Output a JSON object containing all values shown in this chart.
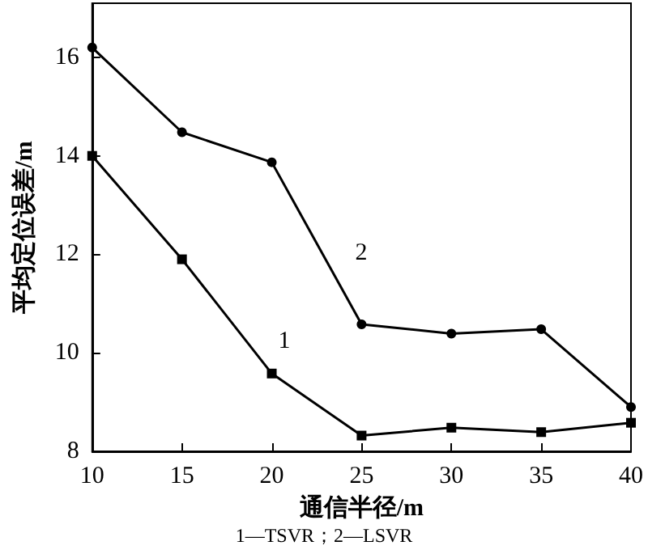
{
  "chart_data": {
    "type": "line",
    "xlabel": "通信半径/m",
    "ylabel": "平均定位误差/m",
    "annotations": [
      "1—TSVR；2—LSVR"
    ],
    "x": [
      10,
      15,
      20,
      25,
      30,
      35,
      40
    ],
    "xlim": [
      10,
      40
    ],
    "xticks": [
      10,
      15,
      20,
      25,
      30,
      35,
      40
    ],
    "ylim": [
      8,
      17.1
    ],
    "yticks": [
      8,
      10,
      12,
      14,
      16
    ],
    "grid": false,
    "legend": false,
    "series": [
      {
        "name": "1",
        "color": "#000000",
        "marker": "square",
        "values": [
          14.0,
          11.9,
          9.58,
          8.32,
          8.48,
          8.39,
          8.58
        ]
      },
      {
        "name": "2",
        "color": "#000000",
        "marker": "circle",
        "values": [
          16.2,
          14.48,
          13.87,
          10.58,
          10.39,
          10.48,
          8.9
        ]
      }
    ]
  }
}
